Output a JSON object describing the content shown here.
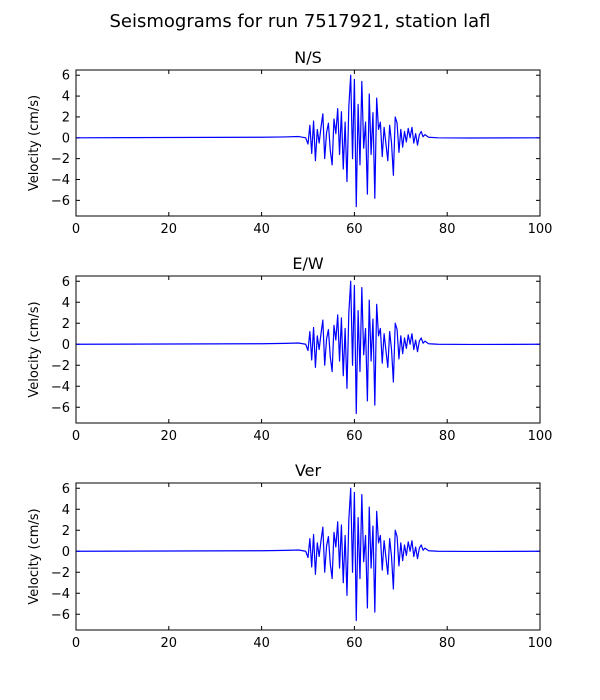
{
  "figure": {
    "title": "Seismograms for run 7517921, station lafl"
  },
  "chart_data": [
    {
      "type": "line",
      "title": "N/S",
      "ylabel": "Velocity (cm/s)",
      "xlabel": "",
      "xlim": [
        0,
        100
      ],
      "ylim": [
        -7.5,
        6.5
      ],
      "xticks": [
        "0",
        "20",
        "40",
        "60",
        "80",
        "100"
      ],
      "yticks": [
        "6",
        "4",
        "2",
        "0",
        "−2",
        "−4",
        "−6"
      ],
      "grid": false,
      "series_color": "#0000ff",
      "x": [
        0,
        40,
        45,
        48,
        49.5,
        50,
        50.4,
        50.8,
        51.2,
        51.6,
        52,
        52.4,
        52.8,
        53.2,
        53.6,
        54,
        54.4,
        54.8,
        55.2,
        55.6,
        56,
        56.4,
        56.8,
        57.2,
        57.6,
        58,
        58.4,
        58.8,
        59.2,
        59.6,
        60,
        60.4,
        60.8,
        61.2,
        61.6,
        62,
        62.4,
        62.8,
        63.2,
        63.6,
        64,
        64.4,
        64.8,
        65.2,
        65.6,
        66,
        66.4,
        66.8,
        67.2,
        67.6,
        68,
        68.4,
        68.8,
        69.2,
        69.6,
        70,
        70.4,
        70.8,
        71.2,
        71.6,
        72,
        72.4,
        72.8,
        73.2,
        73.6,
        74,
        74.4,
        74.8,
        75.2,
        76,
        78,
        85,
        100
      ],
      "y": [
        0,
        0.05,
        0.08,
        0.12,
        0.0,
        -0.6,
        1.2,
        -1.5,
        1.6,
        -2.2,
        0.8,
        -0.5,
        1.0,
        2.3,
        -2.0,
        0.5,
        1.4,
        -1.2,
        -2.6,
        1.8,
        0.4,
        2.8,
        -1.6,
        2.5,
        -3.0,
        1.5,
        -4.2,
        3.0,
        6.0,
        -2.0,
        5.6,
        -6.6,
        3.2,
        -2.6,
        5.4,
        -1.0,
        1.5,
        -5.4,
        4.2,
        -1.6,
        2.4,
        -5.8,
        3.8,
        0.8,
        1.5,
        -1.8,
        1.0,
        -0.6,
        -2.2,
        1.2,
        -0.5,
        -3.6,
        2.0,
        1.4,
        -1.4,
        0.8,
        -0.9,
        0.6,
        -0.4,
        0.9,
        0.0,
        1.0,
        -0.5,
        0.4,
        -0.7,
        0.3,
        0.6,
        0.1,
        0.3,
        0.05,
        0.0,
        -0.02,
        0
      ]
    },
    {
      "type": "line",
      "title": "E/W",
      "ylabel": "Velocity (cm/s)",
      "xlabel": "",
      "xlim": [
        0,
        100
      ],
      "ylim": [
        -7.5,
        6.5
      ],
      "xticks": [
        "0",
        "20",
        "40",
        "60",
        "80",
        "100"
      ],
      "yticks": [
        "6",
        "4",
        "2",
        "0",
        "−2",
        "−4",
        "−6"
      ],
      "grid": false,
      "series_color": "#0000ff",
      "x": [
        0,
        40,
        45,
        48,
        49.5,
        50,
        50.4,
        50.8,
        51.2,
        51.6,
        52,
        52.4,
        52.8,
        53.2,
        53.6,
        54,
        54.4,
        54.8,
        55.2,
        55.6,
        56,
        56.4,
        56.8,
        57.2,
        57.6,
        58,
        58.4,
        58.8,
        59.2,
        59.6,
        60,
        60.4,
        60.8,
        61.2,
        61.6,
        62,
        62.4,
        62.8,
        63.2,
        63.6,
        64,
        64.4,
        64.8,
        65.2,
        65.6,
        66,
        66.4,
        66.8,
        67.2,
        67.6,
        68,
        68.4,
        68.8,
        69.2,
        69.6,
        70,
        70.4,
        70.8,
        71.2,
        71.6,
        72,
        72.4,
        72.8,
        73.2,
        73.6,
        74,
        74.4,
        74.8,
        75.2,
        76,
        78,
        85,
        100
      ],
      "y": [
        0,
        0.05,
        0.08,
        0.12,
        0.0,
        -0.6,
        1.2,
        -1.5,
        1.6,
        -2.2,
        0.8,
        -0.5,
        1.0,
        2.3,
        -2.0,
        0.5,
        1.4,
        -1.2,
        -2.6,
        1.8,
        0.4,
        2.8,
        -1.6,
        2.5,
        -3.0,
        1.5,
        -4.2,
        3.0,
        6.0,
        -2.0,
        5.6,
        -6.6,
        3.2,
        -2.6,
        5.4,
        -1.0,
        1.5,
        -5.4,
        4.2,
        -1.6,
        2.4,
        -5.8,
        3.8,
        0.8,
        1.5,
        -1.8,
        1.0,
        -0.6,
        -2.2,
        1.2,
        -0.5,
        -3.6,
        2.0,
        1.4,
        -1.4,
        0.8,
        -0.9,
        0.6,
        -0.4,
        0.9,
        0.0,
        1.0,
        -0.5,
        0.4,
        -0.7,
        0.3,
        0.6,
        0.1,
        0.3,
        0.05,
        0.0,
        -0.02,
        0
      ]
    },
    {
      "type": "line",
      "title": "Ver",
      "ylabel": "Velocity (cm/s)",
      "xlabel": "",
      "xlim": [
        0,
        100
      ],
      "ylim": [
        -7.5,
        6.5
      ],
      "xticks": [
        "0",
        "20",
        "40",
        "60",
        "80",
        "100"
      ],
      "yticks": [
        "6",
        "4",
        "2",
        "0",
        "−2",
        "−4",
        "−6"
      ],
      "grid": false,
      "series_color": "#0000ff",
      "x": [
        0,
        40,
        45,
        48,
        49.5,
        50,
        50.4,
        50.8,
        51.2,
        51.6,
        52,
        52.4,
        52.8,
        53.2,
        53.6,
        54,
        54.4,
        54.8,
        55.2,
        55.6,
        56,
        56.4,
        56.8,
        57.2,
        57.6,
        58,
        58.4,
        58.8,
        59.2,
        59.6,
        60,
        60.4,
        60.8,
        61.2,
        61.6,
        62,
        62.4,
        62.8,
        63.2,
        63.6,
        64,
        64.4,
        64.8,
        65.2,
        65.6,
        66,
        66.4,
        66.8,
        67.2,
        67.6,
        68,
        68.4,
        68.8,
        69.2,
        69.6,
        70,
        70.4,
        70.8,
        71.2,
        71.6,
        72,
        72.4,
        72.8,
        73.2,
        73.6,
        74,
        74.4,
        74.8,
        75.2,
        76,
        78,
        85,
        100
      ],
      "y": [
        0,
        0.05,
        0.08,
        0.12,
        0.0,
        -0.6,
        1.2,
        -1.5,
        1.6,
        -2.2,
        0.8,
        -0.5,
        1.0,
        2.3,
        -2.0,
        0.5,
        1.4,
        -1.2,
        -2.6,
        1.8,
        0.4,
        2.8,
        -1.6,
        2.5,
        -3.0,
        1.5,
        -4.2,
        3.0,
        6.0,
        -2.0,
        5.6,
        -6.6,
        3.2,
        -2.6,
        5.4,
        -1.0,
        1.5,
        -5.4,
        4.2,
        -1.6,
        2.4,
        -5.8,
        3.8,
        0.8,
        1.5,
        -1.8,
        1.0,
        -0.6,
        -2.2,
        1.2,
        -0.5,
        -3.6,
        2.0,
        1.4,
        -1.4,
        0.8,
        -0.9,
        0.6,
        -0.4,
        0.9,
        0.0,
        1.0,
        -0.5,
        0.4,
        -0.7,
        0.3,
        0.6,
        0.1,
        0.3,
        0.05,
        0.0,
        -0.02,
        0
      ]
    }
  ]
}
